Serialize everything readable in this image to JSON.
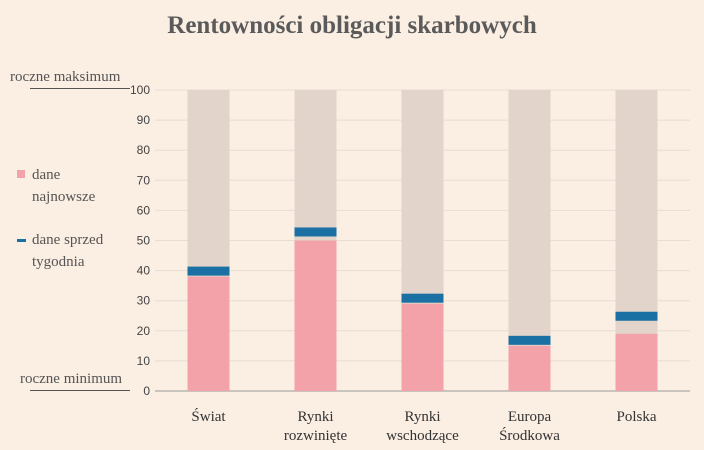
{
  "title": "Rentowności obligacji skarbowych",
  "legend": {
    "latest_label": [
      "dane",
      "najnowsze"
    ],
    "week_ago_label": [
      "dane sprzed",
      "tygodnia"
    ]
  },
  "side_labels": {
    "max": "roczne maksimum",
    "min": "roczne minimum"
  },
  "colors": {
    "background": "#fbeee3",
    "range_bar": "#e2d4ca",
    "latest": "#f4a2aa",
    "week_ago": "#1a6fa3"
  },
  "chart_data": {
    "type": "bar",
    "categories": [
      [
        "Świat"
      ],
      [
        "Rynki",
        "rozwinięte"
      ],
      [
        "Rynki",
        "wschodzące"
      ],
      [
        "Europa",
        "Środkowa"
      ],
      [
        "Polska"
      ]
    ],
    "series": [
      {
        "name": "dane najnowsze",
        "values": [
          38,
          50,
          29,
          15,
          19
        ]
      },
      {
        "name": "dane sprzed tygodnia",
        "values": [
          40,
          53,
          31,
          17,
          25
        ]
      }
    ],
    "range_max": [
      100,
      100,
      100,
      100,
      100
    ],
    "ylim": [
      0,
      100
    ],
    "yticks": [
      0,
      10,
      20,
      30,
      40,
      50,
      60,
      70,
      80,
      90,
      100
    ],
    "grid": true
  }
}
